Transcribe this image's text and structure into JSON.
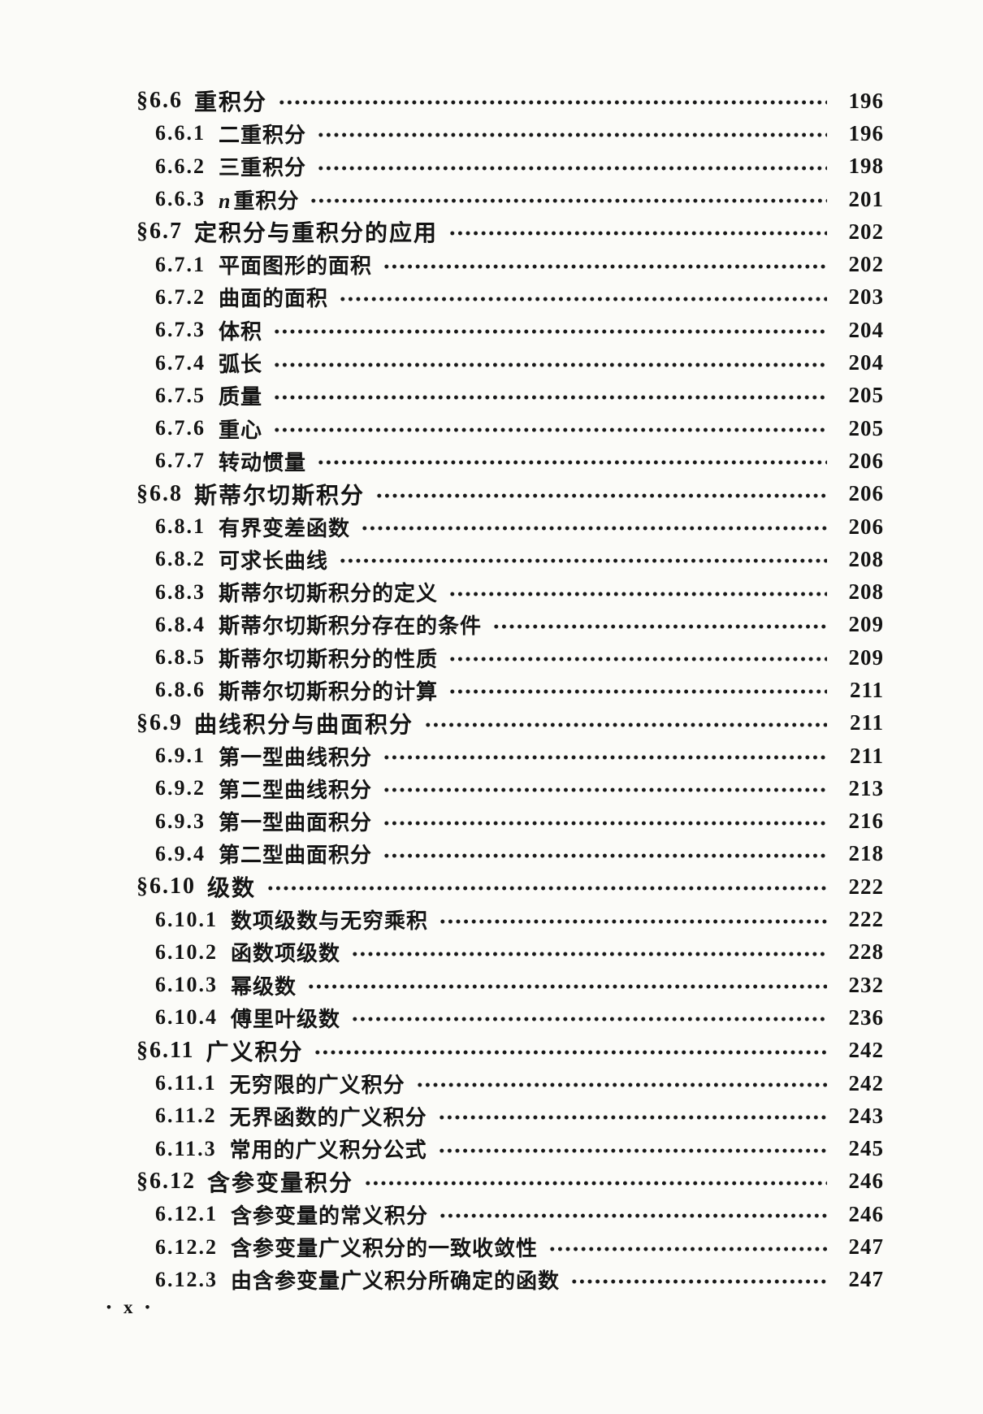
{
  "toc": {
    "entries": [
      {
        "level": "section",
        "number": "§6.6",
        "title": "重积分",
        "page": "196"
      },
      {
        "level": "sub",
        "number": "6.6.1",
        "title": "二重积分",
        "page": "196"
      },
      {
        "level": "sub",
        "number": "6.6.2",
        "title": "三重积分",
        "page": "198"
      },
      {
        "level": "sub",
        "number": "6.6.3",
        "title": "n重积分",
        "page": "201"
      },
      {
        "level": "section",
        "number": "§6.7",
        "title": "定积分与重积分的应用",
        "page": "202"
      },
      {
        "level": "sub",
        "number": "6.7.1",
        "title": "平面图形的面积",
        "page": "202"
      },
      {
        "level": "sub",
        "number": "6.7.2",
        "title": "曲面的面积",
        "page": "203"
      },
      {
        "level": "sub",
        "number": "6.7.3",
        "title": "体积",
        "page": "204"
      },
      {
        "level": "sub",
        "number": "6.7.4",
        "title": "弧长",
        "page": "204"
      },
      {
        "level": "sub",
        "number": "6.7.5",
        "title": "质量",
        "page": "205"
      },
      {
        "level": "sub",
        "number": "6.7.6",
        "title": "重心",
        "page": "205"
      },
      {
        "level": "sub",
        "number": "6.7.7",
        "title": "转动惯量",
        "page": "206"
      },
      {
        "level": "section",
        "number": "§6.8",
        "title": "斯蒂尔切斯积分",
        "page": "206"
      },
      {
        "level": "sub",
        "number": "6.8.1",
        "title": "有界变差函数",
        "page": "206"
      },
      {
        "level": "sub",
        "number": "6.8.2",
        "title": "可求长曲线",
        "page": "208"
      },
      {
        "level": "sub",
        "number": "6.8.3",
        "title": "斯蒂尔切斯积分的定义",
        "page": "208"
      },
      {
        "level": "sub",
        "number": "6.8.4",
        "title": "斯蒂尔切斯积分存在的条件",
        "page": "209"
      },
      {
        "level": "sub",
        "number": "6.8.5",
        "title": "斯蒂尔切斯积分的性质",
        "page": "209"
      },
      {
        "level": "sub",
        "number": "6.8.6",
        "title": "斯蒂尔切斯积分的计算",
        "page": "211"
      },
      {
        "level": "section",
        "number": "§6.9",
        "title": "曲线积分与曲面积分",
        "page": "211"
      },
      {
        "level": "sub",
        "number": "6.9.1",
        "title": "第一型曲线积分",
        "page": "211"
      },
      {
        "level": "sub",
        "number": "6.9.2",
        "title": "第二型曲线积分",
        "page": "213"
      },
      {
        "level": "sub",
        "number": "6.9.3",
        "title": "第一型曲面积分",
        "page": "216"
      },
      {
        "level": "sub",
        "number": "6.9.4",
        "title": "第二型曲面积分",
        "page": "218"
      },
      {
        "level": "section",
        "number": "§6.10",
        "title": "级数",
        "page": "222"
      },
      {
        "level": "sub",
        "number": "6.10.1",
        "title": "数项级数与无穷乘积",
        "page": "222"
      },
      {
        "level": "sub",
        "number": "6.10.2",
        "title": "函数项级数",
        "page": "228"
      },
      {
        "level": "sub",
        "number": "6.10.3",
        "title": "幂级数",
        "page": "232"
      },
      {
        "level": "sub",
        "number": "6.10.4",
        "title": "傅里叶级数",
        "page": "236"
      },
      {
        "level": "section",
        "number": "§6.11",
        "title": "广义积分",
        "page": "242"
      },
      {
        "level": "sub",
        "number": "6.11.1",
        "title": "无穷限的广义积分",
        "page": "242"
      },
      {
        "level": "sub",
        "number": "6.11.2",
        "title": "无界函数的广义积分",
        "page": "243"
      },
      {
        "level": "sub",
        "number": "6.11.3",
        "title": "常用的广义积分公式",
        "page": "245"
      },
      {
        "level": "section",
        "number": "§6.12",
        "title": "含参变量积分",
        "page": "246"
      },
      {
        "level": "sub",
        "number": "6.12.1",
        "title": "含参变量的常义积分",
        "page": "246"
      },
      {
        "level": "sub",
        "number": "6.12.2",
        "title": "含参变量广义积分的一致收敛性",
        "page": "247"
      },
      {
        "level": "sub",
        "number": "6.12.3",
        "title": "由含参变量广义积分所确定的函数",
        "page": "247"
      }
    ]
  },
  "footer": {
    "left_dot": "•",
    "label": "x",
    "right_dot": "•"
  }
}
